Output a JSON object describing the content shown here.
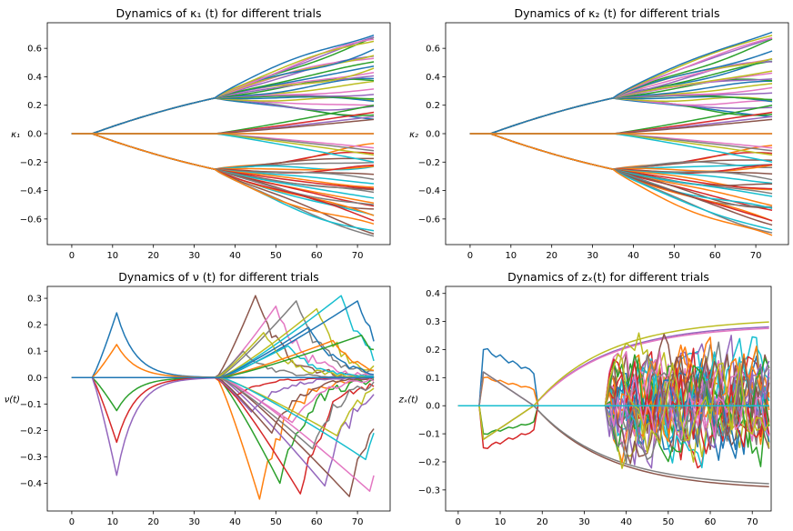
{
  "chart_data": [
    {
      "type": "line",
      "title": "Dynamics of κ₁ (t) for different trials",
      "ylabel": "κ₁",
      "xlabel": "",
      "xlim": [
        -6,
        78
      ],
      "ylim": [
        -0.78,
        0.78
      ],
      "xticks": [
        0,
        10,
        20,
        30,
        40,
        50,
        60,
        70
      ],
      "yticks": [
        -0.6,
        -0.4,
        -0.2,
        0.0,
        0.2,
        0.4,
        0.6
      ],
      "tick_labels_y": [
        "−0.6",
        "−0.4",
        "−0.2",
        "0.0",
        "0.2",
        "0.4",
        "0.6"
      ],
      "grid": false,
      "x_range": [
        0,
        74
      ],
      "series_envelope": {
        "start_value": 0.0,
        "flat_until_x": 5,
        "bifurcation_x": 35,
        "value_at_bifurcation": [
          -0.25,
          0.25
        ],
        "final_values_range": [
          -0.72,
          0.72
        ]
      }
    },
    {
      "type": "line",
      "title": "Dynamics of κ₂ (t) for different trials",
      "ylabel": "κ₂",
      "xlabel": "",
      "xlim": [
        -6,
        78
      ],
      "ylim": [
        -0.78,
        0.78
      ],
      "xticks": [
        0,
        10,
        20,
        30,
        40,
        50,
        60,
        70
      ],
      "yticks": [
        -0.6,
        -0.4,
        -0.2,
        0.0,
        0.2,
        0.4,
        0.6
      ],
      "tick_labels_y": [
        "−0.6",
        "−0.4",
        "−0.2",
        "0.0",
        "0.2",
        "0.4",
        "0.6"
      ],
      "grid": false,
      "x_range": [
        0,
        74
      ],
      "series_envelope": {
        "start_value": 0.0,
        "flat_until_x": 5,
        "bifurcation_x": 35,
        "value_at_bifurcation": [
          -0.25,
          0.25
        ],
        "final_values_range": [
          -0.72,
          0.72
        ]
      }
    },
    {
      "type": "line",
      "title": "Dynamics of ν (t) for different trials",
      "ylabel": "ν(t)",
      "xlabel": "",
      "xlim": [
        -6,
        78
      ],
      "ylim": [
        -0.505,
        0.345
      ],
      "xticks": [
        0,
        10,
        20,
        30,
        40,
        50,
        60,
        70
      ],
      "yticks": [
        -0.4,
        -0.3,
        -0.2,
        -0.1,
        0.0,
        0.1,
        0.2,
        0.3
      ],
      "tick_labels_y": [
        "−0.4",
        "−0.3",
        "−0.2",
        "−0.1",
        "0.0",
        "0.1",
        "0.2",
        "0.3"
      ],
      "grid": false,
      "x_range": [
        0,
        74
      ],
      "series_envelope": {
        "first_pulse": {
          "start_x": 5,
          "peak_x": 11,
          "peak_values": [
            0.245,
            0.125,
            -0.125,
            -0.245,
            -0.37
          ]
        },
        "decay_to_zero_by_x": 33,
        "second_phase_start_x": 35,
        "max_value": 0.31,
        "min_value": -0.46
      }
    },
    {
      "type": "line",
      "title": "Dynamics of zₓ(t) for different trials",
      "ylabel": "zₓ(t)",
      "xlabel": "",
      "xlim": [
        -3,
        74.5
      ],
      "ylim": [
        -0.375,
        0.425
      ],
      "xticks": [
        0,
        10,
        20,
        30,
        40,
        50,
        60,
        70
      ],
      "yticks": [
        -0.3,
        -0.2,
        -0.1,
        0.0,
        0.1,
        0.2,
        0.3,
        0.4
      ],
      "tick_labels_y": [
        "−0.3",
        "−0.2",
        "−0.1",
        "0.0",
        "0.1",
        "0.2",
        "0.3",
        "0.4"
      ],
      "grid": false,
      "x_range": [
        0,
        74
      ],
      "series_envelope": {
        "flat_until_x": 5,
        "first_spike_x": 6,
        "first_spike_values": [
          0.2,
          0.1,
          -0.1,
          -0.15
        ],
        "crossing_zero_x": 18,
        "smooth_branch_final": [
          -0.3,
          0.3
        ],
        "chaotic_phase_start_x": 35,
        "max_value": 0.37,
        "min_value": -0.35
      }
    }
  ],
  "palette": [
    "#1f77b4",
    "#ff7f0e",
    "#2ca02c",
    "#d62728",
    "#9467bd",
    "#8c564b",
    "#e377c2",
    "#7f7f7f",
    "#bcbd22",
    "#17becf"
  ]
}
